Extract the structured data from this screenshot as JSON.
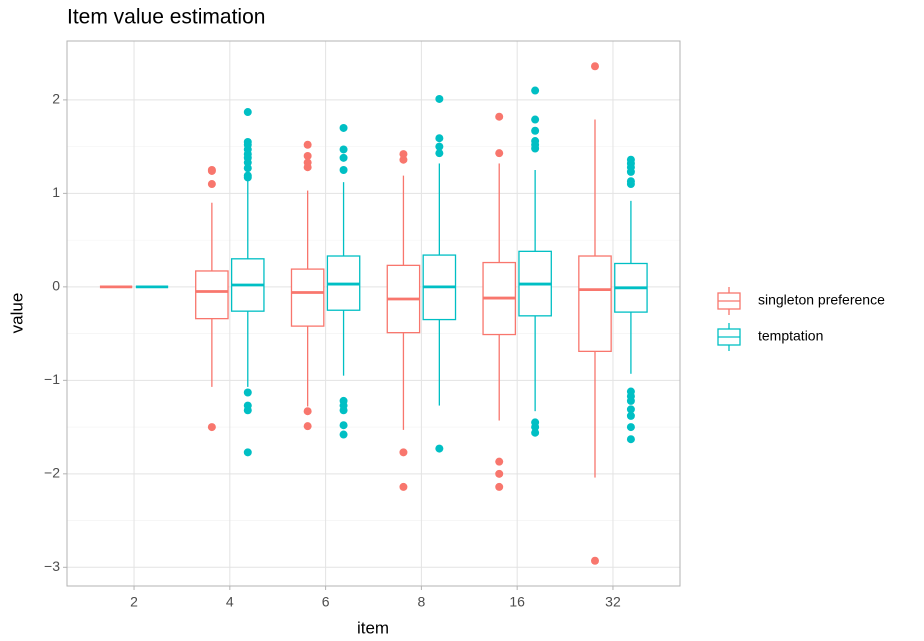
{
  "chart_data": {
    "type": "boxplot",
    "title": "Item value estimation",
    "x_label": "item",
    "y_label": "value",
    "categories": [
      "2",
      "4",
      "6",
      "8",
      "16",
      "32"
    ],
    "ylim": [
      -3.2,
      2.63
    ],
    "yticks": [
      {
        "value": -3,
        "label": "−3"
      },
      {
        "value": -2,
        "label": "−2"
      },
      {
        "value": -1,
        "label": "−1"
      },
      0,
      1,
      2
    ],
    "grid": true,
    "legend_position": "right",
    "series": [
      {
        "name": "singleton preference",
        "color": "#F8766D",
        "boxes": [
          {
            "min": 0,
            "q1": 0,
            "median": 0,
            "q3": 0,
            "max": 0,
            "outliers": []
          },
          {
            "min": -1.07,
            "q1": -0.34,
            "median": -0.05,
            "q3": 0.17,
            "max": 0.9,
            "outliers": [
              1.25,
              1.24,
              1.1,
              -1.5
            ]
          },
          {
            "min": -1.28,
            "q1": -0.42,
            "median": -0.06,
            "q3": 0.19,
            "max": 1.03,
            "outliers": [
              1.52,
              1.4,
              1.33,
              1.28,
              -1.33,
              -1.49
            ]
          },
          {
            "min": -1.53,
            "q1": -0.49,
            "median": -0.13,
            "q3": 0.23,
            "max": 1.19,
            "outliers": [
              1.42,
              1.36,
              -1.77,
              -2.14
            ]
          },
          {
            "min": -1.43,
            "q1": -0.51,
            "median": -0.12,
            "q3": 0.26,
            "max": 1.32,
            "outliers": [
              1.82,
              1.43,
              -1.87,
              -2.0,
              -2.14
            ]
          },
          {
            "min": -2.04,
            "q1": -0.69,
            "median": -0.03,
            "q3": 0.33,
            "max": 1.79,
            "outliers": [
              2.36,
              -2.93
            ]
          }
        ]
      },
      {
        "name": "temptation",
        "color": "#00BFC4",
        "boxes": [
          {
            "min": 0,
            "q1": 0,
            "median": 0,
            "q3": 0,
            "max": 0,
            "outliers": []
          },
          {
            "min": -1.07,
            "q1": -0.26,
            "median": 0.02,
            "q3": 0.3,
            "max": 1.15,
            "outliers": [
              1.87,
              1.55,
              1.52,
              1.47,
              1.42,
              1.38,
              1.33,
              1.27,
              1.19,
              1.17,
              -1.13,
              -1.27,
              -1.32,
              -1.77
            ]
          },
          {
            "min": -0.95,
            "q1": -0.25,
            "median": 0.03,
            "q3": 0.33,
            "max": 1.12,
            "outliers": [
              1.7,
              1.47,
              1.38,
              1.25,
              -1.22,
              -1.27,
              -1.32,
              -1.48,
              -1.58
            ]
          },
          {
            "min": -1.27,
            "q1": -0.35,
            "median": 0.0,
            "q3": 0.34,
            "max": 1.32,
            "outliers": [
              2.01,
              1.59,
              1.5,
              1.43,
              -1.73
            ]
          },
          {
            "min": -1.33,
            "q1": -0.31,
            "median": 0.03,
            "q3": 0.38,
            "max": 1.25,
            "outliers": [
              2.1,
              1.79,
              1.67,
              1.56,
              1.52,
              1.48,
              -1.45,
              -1.5,
              -1.56
            ]
          },
          {
            "min": -0.93,
            "q1": -0.27,
            "median": -0.01,
            "q3": 0.25,
            "max": 0.92,
            "outliers": [
              1.36,
              1.32,
              1.28,
              1.23,
              1.13,
              1.1,
              -1.12,
              -1.17,
              -1.22,
              -1.31,
              -1.38,
              -1.5,
              -1.63
            ]
          }
        ]
      }
    ]
  }
}
